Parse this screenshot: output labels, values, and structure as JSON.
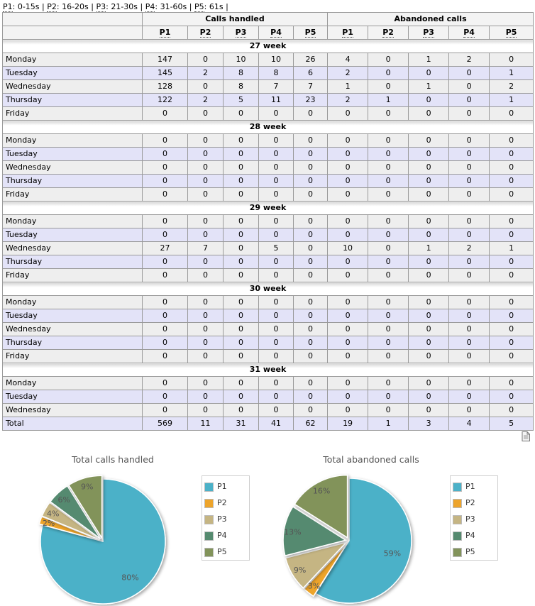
{
  "legend_line": {
    "items": [
      {
        "key": "P1",
        "range": ": 0-15s"
      },
      {
        "key": "P2",
        "range": ": 16-20s"
      },
      {
        "key": "P3",
        "range": ": 21-30s"
      },
      {
        "key": "P4",
        "range": ": 31-60s"
      },
      {
        "key": "P5",
        "range": ": 61s"
      }
    ],
    "sep": " | "
  },
  "table": {
    "group_calls": "Calls handled",
    "group_abandoned": "Abandoned calls",
    "columns": [
      "P1",
      "P2",
      "P3",
      "P4",
      "P5",
      "P1",
      "P2",
      "P3",
      "P4",
      "P5"
    ],
    "weeks": [
      {
        "label": "27 week",
        "rows": [
          {
            "day": "Monday",
            "values": [
              "147",
              "0",
              "10",
              "10",
              "26",
              "4",
              "0",
              "1",
              "2",
              "0"
            ]
          },
          {
            "day": "Tuesday",
            "values": [
              "145",
              "2",
              "8",
              "8",
              "6",
              "2",
              "0",
              "0",
              "0",
              "1"
            ]
          },
          {
            "day": "Wednesday",
            "values": [
              "128",
              "0",
              "8",
              "7",
              "7",
              "1",
              "0",
              "1",
              "0",
              "2"
            ]
          },
          {
            "day": "Thursday",
            "values": [
              "122",
              "2",
              "5",
              "11",
              "23",
              "2",
              "1",
              "0",
              "0",
              "1"
            ]
          },
          {
            "day": "Friday",
            "values": [
              "0",
              "0",
              "0",
              "0",
              "0",
              "0",
              "0",
              "0",
              "0",
              "0"
            ]
          }
        ]
      },
      {
        "label": "28 week",
        "rows": [
          {
            "day": "Monday",
            "values": [
              "0",
              "0",
              "0",
              "0",
              "0",
              "0",
              "0",
              "0",
              "0",
              "0"
            ]
          },
          {
            "day": "Tuesday",
            "values": [
              "0",
              "0",
              "0",
              "0",
              "0",
              "0",
              "0",
              "0",
              "0",
              "0"
            ]
          },
          {
            "day": "Wednesday",
            "values": [
              "0",
              "0",
              "0",
              "0",
              "0",
              "0",
              "0",
              "0",
              "0",
              "0"
            ]
          },
          {
            "day": "Thursday",
            "values": [
              "0",
              "0",
              "0",
              "0",
              "0",
              "0",
              "0",
              "0",
              "0",
              "0"
            ]
          },
          {
            "day": "Friday",
            "values": [
              "0",
              "0",
              "0",
              "0",
              "0",
              "0",
              "0",
              "0",
              "0",
              "0"
            ]
          }
        ]
      },
      {
        "label": "29 week",
        "rows": [
          {
            "day": "Monday",
            "values": [
              "0",
              "0",
              "0",
              "0",
              "0",
              "0",
              "0",
              "0",
              "0",
              "0"
            ]
          },
          {
            "day": "Tuesday",
            "values": [
              "0",
              "0",
              "0",
              "0",
              "0",
              "0",
              "0",
              "0",
              "0",
              "0"
            ]
          },
          {
            "day": "Wednesday",
            "values": [
              "27",
              "7",
              "0",
              "5",
              "0",
              "10",
              "0",
              "1",
              "2",
              "1"
            ]
          },
          {
            "day": "Thursday",
            "values": [
              "0",
              "0",
              "0",
              "0",
              "0",
              "0",
              "0",
              "0",
              "0",
              "0"
            ]
          },
          {
            "day": "Friday",
            "values": [
              "0",
              "0",
              "0",
              "0",
              "0",
              "0",
              "0",
              "0",
              "0",
              "0"
            ]
          }
        ]
      },
      {
        "label": "30 week",
        "rows": [
          {
            "day": "Monday",
            "values": [
              "0",
              "0",
              "0",
              "0",
              "0",
              "0",
              "0",
              "0",
              "0",
              "0"
            ]
          },
          {
            "day": "Tuesday",
            "values": [
              "0",
              "0",
              "0",
              "0",
              "0",
              "0",
              "0",
              "0",
              "0",
              "0"
            ]
          },
          {
            "day": "Wednesday",
            "values": [
              "0",
              "0",
              "0",
              "0",
              "0",
              "0",
              "0",
              "0",
              "0",
              "0"
            ]
          },
          {
            "day": "Thursday",
            "values": [
              "0",
              "0",
              "0",
              "0",
              "0",
              "0",
              "0",
              "0",
              "0",
              "0"
            ]
          },
          {
            "day": "Friday",
            "values": [
              "0",
              "0",
              "0",
              "0",
              "0",
              "0",
              "0",
              "0",
              "0",
              "0"
            ]
          }
        ]
      },
      {
        "label": "31 week",
        "rows": [
          {
            "day": "Monday",
            "values": [
              "0",
              "0",
              "0",
              "0",
              "0",
              "0",
              "0",
              "0",
              "0",
              "0"
            ]
          },
          {
            "day": "Tuesday",
            "values": [
              "0",
              "0",
              "0",
              "0",
              "0",
              "0",
              "0",
              "0",
              "0",
              "0"
            ]
          },
          {
            "day": "Wednesday",
            "values": [
              "0",
              "0",
              "0",
              "0",
              "0",
              "0",
              "0",
              "0",
              "0",
              "0"
            ]
          }
        ]
      }
    ],
    "total": {
      "label": "Total",
      "values": [
        "569",
        "11",
        "31",
        "41",
        "62",
        "19",
        "1",
        "3",
        "4",
        "5"
      ]
    }
  },
  "export_icon": "document-export-icon",
  "colors": {
    "P1": "#4bb1c8",
    "P2": "#eda42b",
    "P3": "#c5b583",
    "P4": "#558a6f",
    "P5": "#82935a"
  },
  "chart_data": [
    {
      "type": "pie",
      "title": "Total calls handled",
      "categories": [
        "P1",
        "P2",
        "P3",
        "P4",
        "P5"
      ],
      "values": [
        80,
        2,
        4,
        6,
        9
      ],
      "labels": [
        "80%",
        "2%",
        "4%",
        "6%",
        "9%"
      ],
      "legend_position": "right"
    },
    {
      "type": "pie",
      "title": "Total abandoned calls",
      "categories": [
        "P1",
        "P2",
        "P3",
        "P4",
        "P5"
      ],
      "values": [
        59,
        3,
        9,
        13,
        16
      ],
      "labels": [
        "59%",
        "3%",
        "9%",
        "13%",
        "16%"
      ],
      "legend_position": "right"
    }
  ]
}
